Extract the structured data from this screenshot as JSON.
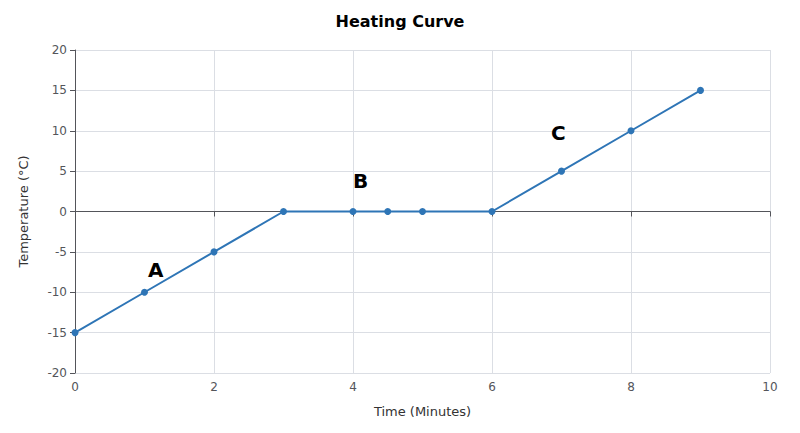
{
  "chart_data": {
    "type": "line",
    "title": "Heating Curve",
    "xlabel": "Time (Minutes)",
    "ylabel": "Temperature (°C)",
    "x": [
      0,
      1,
      2,
      3,
      4,
      4.5,
      5,
      6,
      7,
      8,
      9
    ],
    "values": [
      -15,
      -10,
      -5,
      0,
      0,
      0,
      0,
      0,
      5,
      10,
      15
    ],
    "color": "#2e75b6",
    "marker": "circle",
    "xlim": [
      0,
      10
    ],
    "ylim": [
      -20,
      20
    ],
    "xticks": [
      0,
      2,
      4,
      6,
      8,
      10
    ],
    "yticks": [
      -20,
      -15,
      -10,
      -5,
      0,
      5,
      10,
      15,
      20
    ],
    "grid": true,
    "annotations": [
      {
        "label": "A",
        "x": 1.05,
        "y": -8.5
      },
      {
        "label": "B",
        "x": 4.0,
        "y": 2.5
      },
      {
        "label": "C",
        "x": 6.85,
        "y": 8.5
      }
    ]
  }
}
